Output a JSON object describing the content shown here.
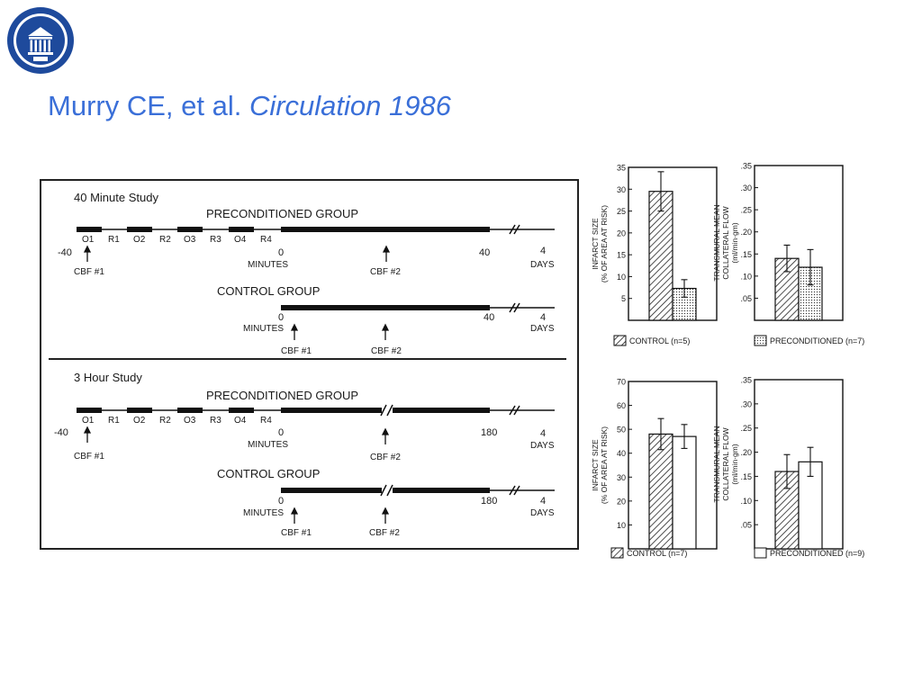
{
  "title": {
    "authors": "Murry CE, et al.",
    "journal": "Circulation 1986"
  },
  "logo": {
    "seal_text": "UNIVERSITAS TARTUENSIS 1632",
    "icon": "university-seal-icon"
  },
  "protocol": {
    "study1": {
      "title": "40 Minute Study",
      "precond_label": "PRECONDITIONED GROUP",
      "control_label": "CONTROL GROUP",
      "segments": [
        "O1",
        "R1",
        "O2",
        "R2",
        "O3",
        "R3",
        "O4",
        "R4"
      ],
      "neg40": "-40",
      "zero": "0",
      "end": "40",
      "days_num": "4",
      "days": "DAYS",
      "minutes": "MINUTES",
      "cbf1": "CBF #1",
      "cbf2": "CBF #2"
    },
    "study2": {
      "title": "3 Hour Study",
      "precond_label": "PRECONDITIONED GROUP",
      "control_label": "CONTROL GROUP",
      "segments": [
        "O1",
        "R1",
        "O2",
        "R2",
        "O3",
        "R3",
        "O4",
        "R4"
      ],
      "neg40": "-40",
      "zero": "0",
      "end": "180",
      "days_num": "4",
      "days": "DAYS",
      "minutes": "MINUTES",
      "cbf1": "CBF #1",
      "cbf2": "CBF #2"
    }
  },
  "chart_data": [
    {
      "type": "bar",
      "ylabel": [
        "INFARCT SIZE",
        "(% OF AREA AT RISK)"
      ],
      "ylim": [
        0,
        35
      ],
      "yticks": [
        "5",
        "10",
        "15",
        "20",
        "25",
        "30",
        "35"
      ],
      "series": [
        {
          "name": "CONTROL (n=5)",
          "value": 29.5,
          "error": 4.5,
          "pattern": "hatch"
        },
        {
          "name": "PRECONDITIONED (n=7)",
          "value": 7.3,
          "error": 2.0,
          "pattern": "dots"
        }
      ],
      "legend": "CONTROL (n=5)"
    },
    {
      "type": "bar",
      "ylabel": [
        "TRANSMURAL MEAN",
        "COLLATERAL FLOW",
        "(ml/min·gm)"
      ],
      "ylim": [
        0,
        0.35
      ],
      "yticks": [
        ".05",
        ".10",
        ".15",
        ".20",
        ".25",
        ".30",
        ".35"
      ],
      "series": [
        {
          "name": "CONTROL (n=5)",
          "value": 0.14,
          "error": 0.03,
          "pattern": "hatch"
        },
        {
          "name": "PRECONDITIONED (n=7)",
          "value": 0.12,
          "error": 0.04,
          "pattern": "dots"
        }
      ],
      "legend": "PRECONDITIONED (n=7)"
    },
    {
      "type": "bar",
      "ylabel": [
        "INFARCT SIZE",
        "(% OF AREA AT RISK)"
      ],
      "ylim": [
        0,
        70
      ],
      "yticks": [
        "10",
        "20",
        "30",
        "40",
        "50",
        "60",
        "70"
      ],
      "series": [
        {
          "name": "CONTROL (n=7)",
          "value": 48,
          "error": 6.5,
          "pattern": "hatch"
        },
        {
          "name": "PRECONDITIONED (n=9)",
          "value": 47,
          "error": 5,
          "pattern": "plain"
        }
      ],
      "legend": "CONTROL (n=7)"
    },
    {
      "type": "bar",
      "ylabel": [
        "TRANSMURAL MEAN",
        "COLLATERAL FLOW",
        "(ml/min·gm)"
      ],
      "ylim": [
        0,
        0.35
      ],
      "yticks": [
        ".05",
        ".10",
        ".15",
        ".20",
        ".25",
        ".30",
        ".35"
      ],
      "series": [
        {
          "name": "CONTROL (n=7)",
          "value": 0.16,
          "error": 0.035,
          "pattern": "hatch"
        },
        {
          "name": "PRECONDITIONED (n=9)",
          "value": 0.18,
          "error": 0.03,
          "pattern": "plain"
        }
      ],
      "legend": "PRECONDITIONED (n=9)"
    }
  ]
}
